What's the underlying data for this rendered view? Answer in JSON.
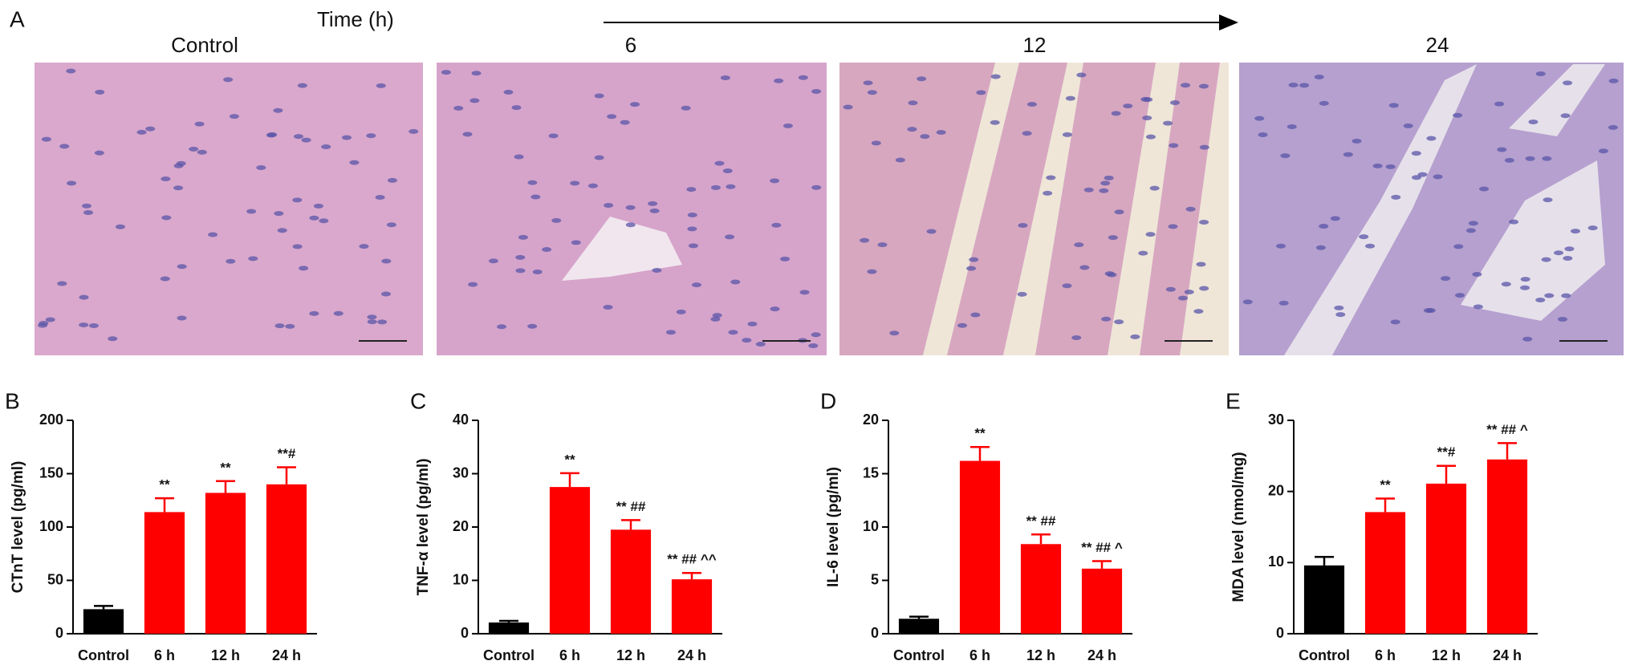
{
  "figure": {
    "label": "A",
    "time_label": "Time (h)",
    "columns": [
      "Control",
      "6",
      "12",
      "24"
    ]
  },
  "chart_data": [
    {
      "type": "bar",
      "panel": "B",
      "ylabel": "CTnT level (pg/ml)",
      "categories": [
        "Control",
        "6 h",
        "12 h",
        "24 h"
      ],
      "values": [
        23,
        114,
        132,
        140
      ],
      "errors": [
        3,
        13,
        11,
        16
      ],
      "colors": [
        "#000000",
        "#ff0000",
        "#ff0000",
        "#ff0000"
      ],
      "annotations": [
        null,
        "**",
        "**",
        "**#"
      ],
      "ylim": [
        0,
        200
      ],
      "yticks": [
        0,
        50,
        100,
        150,
        200
      ]
    },
    {
      "type": "bar",
      "panel": "C",
      "ylabel": "TNF-α level (pg/ml)",
      "categories": [
        "Control",
        "6 h",
        "12 h",
        "24 h"
      ],
      "values": [
        2.1,
        27.5,
        19.5,
        10.2
      ],
      "errors": [
        0.3,
        2.6,
        1.8,
        1.2
      ],
      "colors": [
        "#000000",
        "#ff0000",
        "#ff0000",
        "#ff0000"
      ],
      "annotations": [
        null,
        "**",
        "** ##",
        "** ## ^^"
      ],
      "ylim": [
        0,
        40
      ],
      "yticks": [
        0,
        10,
        20,
        30,
        40
      ]
    },
    {
      "type": "bar",
      "panel": "D",
      "ylabel": "IL-6 level (pg/ml)",
      "categories": [
        "Control",
        "6 h",
        "12 h",
        "24 h"
      ],
      "values": [
        1.4,
        16.2,
        8.4,
        6.1
      ],
      "errors": [
        0.2,
        1.3,
        0.9,
        0.7
      ],
      "colors": [
        "#000000",
        "#ff0000",
        "#ff0000",
        "#ff0000"
      ],
      "annotations": [
        null,
        "**",
        "** ##",
        "** ## ^"
      ],
      "ylim": [
        0,
        20
      ],
      "yticks": [
        0,
        5,
        10,
        15,
        20
      ]
    },
    {
      "type": "bar",
      "panel": "E",
      "ylabel": "MDA level (nmol/mg)",
      "categories": [
        "Control",
        "6 h",
        "12 h",
        "24 h"
      ],
      "values": [
        9.6,
        17.1,
        21.1,
        24.5
      ],
      "errors": [
        1.2,
        1.9,
        2.5,
        2.3
      ],
      "colors": [
        "#000000",
        "#ff0000",
        "#ff0000",
        "#ff0000"
      ],
      "annotations": [
        null,
        "**",
        "**#",
        "** ## ^"
      ],
      "ylim": [
        0,
        30
      ],
      "yticks": [
        0,
        10,
        20,
        30
      ]
    }
  ]
}
